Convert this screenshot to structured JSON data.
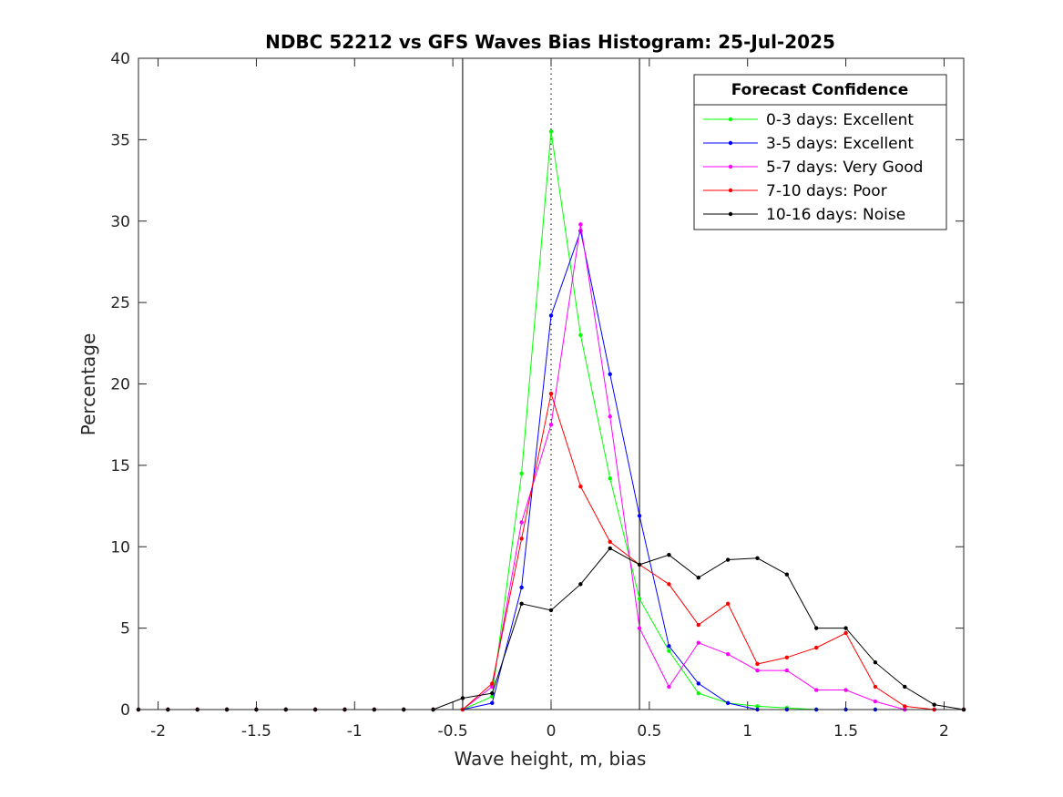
{
  "chart_data": {
    "type": "line",
    "title": "NDBC 52212 vs GFS Waves Bias Histogram: 25-Jul-2025",
    "xlabel": "Wave height, m, bias",
    "ylabel": "Percentage",
    "xlim": [
      -2.1,
      2.1
    ],
    "ylim": [
      0,
      40
    ],
    "xticks": [
      -2,
      -1.5,
      -1,
      -0.5,
      0,
      0.5,
      1,
      1.5,
      2
    ],
    "xtick_labels": [
      "-2",
      "-1.5",
      "-1",
      "-0.5",
      "0",
      "0.5",
      "1",
      "1.5",
      "2"
    ],
    "yticks": [
      0,
      5,
      10,
      15,
      20,
      25,
      30,
      35,
      40
    ],
    "ytick_labels": [
      "0",
      "5",
      "10",
      "15",
      "20",
      "25",
      "30",
      "35",
      "40"
    ],
    "grid": false,
    "reference_lines": [
      {
        "x": -0.45,
        "style": "solid"
      },
      {
        "x": 0,
        "style": "dotted"
      },
      {
        "x": 0.45,
        "style": "solid"
      }
    ],
    "legend": {
      "title": "Forecast Confidence",
      "position": "top-right"
    },
    "x": [
      -2.1,
      -1.95,
      -1.8,
      -1.65,
      -1.5,
      -1.35,
      -1.2,
      -1.05,
      -0.9,
      -0.75,
      -0.6,
      -0.45,
      -0.3,
      -0.15,
      0,
      0.15,
      0.3,
      0.45,
      0.6,
      0.75,
      0.9,
      1.05,
      1.2,
      1.35,
      1.5,
      1.65,
      1.8,
      1.95,
      2.1
    ],
    "series": [
      {
        "name": "0-3 days: Excellent",
        "color": "#00ff00",
        "values": [
          0,
          0,
          0,
          0,
          0,
          0,
          0,
          0,
          0,
          0,
          0,
          0,
          0.8,
          14.5,
          35.5,
          23.0,
          14.2,
          6.8,
          3.6,
          1.0,
          0.4,
          0.2,
          0.1,
          0,
          0,
          0,
          0,
          0,
          0
        ]
      },
      {
        "name": "3-5 days: Excellent",
        "color": "#0000ff",
        "values": [
          0,
          0,
          0,
          0,
          0,
          0,
          0,
          0,
          0,
          0,
          0,
          0,
          0.4,
          7.5,
          24.2,
          29.4,
          20.6,
          11.9,
          3.9,
          1.6,
          0.4,
          0,
          0,
          0,
          0,
          0,
          0,
          0,
          0
        ]
      },
      {
        "name": "5-7 days: Very Good",
        "color": "#ff00ff",
        "values": [
          0,
          0,
          0,
          0,
          0,
          0,
          0,
          0,
          0,
          0,
          0,
          0,
          1.4,
          11.5,
          17.5,
          29.8,
          18.0,
          5.0,
          1.4,
          4.1,
          3.4,
          2.4,
          2.4,
          1.2,
          1.2,
          0.5,
          0,
          0,
          0
        ]
      },
      {
        "name": "7-10 days: Poor",
        "color": "#ff0000",
        "values": [
          0,
          0,
          0,
          0,
          0,
          0,
          0,
          0,
          0,
          0,
          0,
          0,
          1.6,
          10.5,
          19.4,
          13.7,
          10.3,
          8.9,
          7.7,
          5.2,
          6.5,
          2.8,
          3.2,
          3.8,
          4.7,
          1.4,
          0.2,
          0,
          0
        ]
      },
      {
        "name": "10-16 days: Noise",
        "color": "#000000",
        "values": [
          0,
          0,
          0,
          0,
          0,
          0,
          0,
          0,
          0,
          0,
          0,
          0.7,
          1.0,
          6.5,
          6.1,
          7.7,
          9.9,
          8.9,
          9.5,
          8.1,
          9.2,
          9.3,
          8.3,
          5.0,
          5.0,
          2.9,
          1.4,
          0.3,
          0
        ]
      }
    ]
  }
}
